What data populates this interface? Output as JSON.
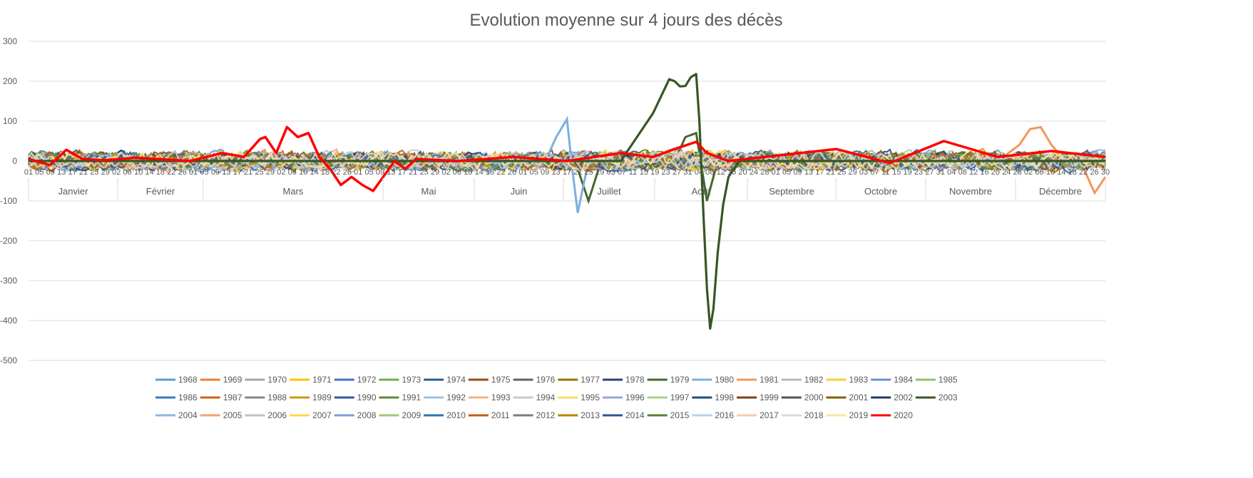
{
  "chart_data": {
    "type": "line",
    "title": "Evolution moyenne sur 4 jours des décès",
    "xlabel": "",
    "ylabel": "",
    "ylim": [
      -500,
      300
    ],
    "yticks": [
      300,
      200,
      100,
      0,
      -100,
      -200,
      -300,
      -400,
      -500
    ],
    "grid": true,
    "legend_position": "bottom",
    "months": [
      "Janvier",
      "Février",
      "Mars",
      "Mai",
      "Juin",
      "Juillet",
      "Août",
      "Septembre",
      "Octobre",
      "Novembre",
      "Décembre"
    ],
    "day_tick_labels": [
      "01",
      "05",
      "09",
      "13",
      "17",
      "21",
      "25",
      "29",
      "02",
      "06",
      "10",
      "14",
      "18",
      "22",
      "26",
      "01",
      "05",
      "09",
      "13",
      "17",
      "21",
      "25",
      "29",
      "02",
      "06",
      "10",
      "14",
      "18",
      "22",
      "26",
      "01",
      "05",
      "09",
      "13",
      "17",
      "21",
      "25",
      "29",
      "02",
      "06",
      "10",
      "14",
      "18",
      "22",
      "26",
      "01",
      "05",
      "09",
      "13",
      "17",
      "21",
      "25",
      "29",
      "03",
      "07",
      "11",
      "15",
      "19",
      "23",
      "27",
      "31",
      "04",
      "08",
      "12",
      "16",
      "20",
      "24",
      "28",
      "01",
      "05",
      "09",
      "13",
      "17",
      "21",
      "25",
      "29",
      "03",
      "07",
      "11",
      "15",
      "19",
      "23",
      "27",
      "31",
      "04",
      "08",
      "12",
      "16",
      "20",
      "24",
      "28",
      "02",
      "06",
      "10",
      "14",
      "18",
      "22",
      "26",
      "30"
    ],
    "series": [
      {
        "name": "1968",
        "color": "#5b9bd5"
      },
      {
        "name": "1969",
        "color": "#ed7d31"
      },
      {
        "name": "1970",
        "color": "#a5a5a5"
      },
      {
        "name": "1971",
        "color": "#ffc000"
      },
      {
        "name": "1972",
        "color": "#4472c4"
      },
      {
        "name": "1973",
        "color": "#70ad47"
      },
      {
        "name": "1974",
        "color": "#255e91"
      },
      {
        "name": "1975",
        "color": "#9e480e"
      },
      {
        "name": "1976",
        "color": "#636363"
      },
      {
        "name": "1977",
        "color": "#997300"
      },
      {
        "name": "1978",
        "color": "#264478"
      },
      {
        "name": "1979",
        "color": "#43682b"
      },
      {
        "name": "1980",
        "color": "#7cafdd"
      },
      {
        "name": "1981",
        "color": "#f1975a"
      },
      {
        "name": "1982",
        "color": "#b7b7b7"
      },
      {
        "name": "1983",
        "color": "#ffcd33"
      },
      {
        "name": "1984",
        "color": "#698ed0"
      },
      {
        "name": "1985",
        "color": "#8cc168"
      },
      {
        "name": "1986",
        "color": "#327dc2"
      },
      {
        "name": "1987",
        "color": "#d26012"
      },
      {
        "name": "1988",
        "color": "#848484"
      },
      {
        "name": "1989",
        "color": "#cc9a00"
      },
      {
        "name": "1990",
        "color": "#335aa1"
      },
      {
        "name": "1991",
        "color": "#5a8a39"
      },
      {
        "name": "1992",
        "color": "#9cc2e5"
      },
      {
        "name": "1993",
        "color": "#f4b183"
      },
      {
        "name": "1994",
        "color": "#c9c9c9"
      },
      {
        "name": "1995",
        "color": "#ffd966"
      },
      {
        "name": "1996",
        "color": "#8faadc"
      },
      {
        "name": "1997",
        "color": "#a9d18e"
      },
      {
        "name": "1998",
        "color": "#1f4e79"
      },
      {
        "name": "1999",
        "color": "#843c0c"
      },
      {
        "name": "2000",
        "color": "#525252"
      },
      {
        "name": "2001",
        "color": "#7f6000"
      },
      {
        "name": "2002",
        "color": "#203864"
      },
      {
        "name": "2003",
        "color": "#375623"
      },
      {
        "name": "2004",
        "color": "#8ab7e0"
      },
      {
        "name": "2005",
        "color": "#f3a26f"
      },
      {
        "name": "2006",
        "color": "#bfbfbf"
      },
      {
        "name": "2007",
        "color": "#ffd54f"
      },
      {
        "name": "2008",
        "color": "#7f9cd6"
      },
      {
        "name": "2009",
        "color": "#9bc97c"
      },
      {
        "name": "2010",
        "color": "#2e75b6"
      },
      {
        "name": "2011",
        "color": "#c55a11"
      },
      {
        "name": "2012",
        "color": "#7b7b7b"
      },
      {
        "name": "2013",
        "color": "#b38600"
      },
      {
        "name": "2014",
        "color": "#2f5597"
      },
      {
        "name": "2015",
        "color": "#548235"
      },
      {
        "name": "2016",
        "color": "#b4d0ec"
      },
      {
        "name": "2017",
        "color": "#f8cbad"
      },
      {
        "name": "2018",
        "color": "#d9d9d9"
      },
      {
        "name": "2019",
        "color": "#ffe699"
      },
      {
        "name": "2020",
        "color": "#ff0000"
      }
    ],
    "highlight_series": {
      "2003": {
        "x": [
          0,
          0.55,
          0.58,
          0.595,
          0.6,
          0.605,
          0.61,
          0.615,
          0.62,
          0.623,
          0.627,
          0.63,
          0.633,
          0.636,
          0.64,
          0.645,
          0.65,
          0.66,
          0.68,
          1
        ],
        "y": [
          0,
          0,
          120,
          205,
          200,
          187,
          188,
          210,
          218,
          100,
          -150,
          -320,
          -420,
          -370,
          -230,
          -110,
          -40,
          0,
          0,
          0
        ]
      },
      "2020": {
        "x": [
          0,
          0.02,
          0.035,
          0.05,
          0.07,
          0.1,
          0.15,
          0.18,
          0.2,
          0.215,
          0.22,
          0.23,
          0.24,
          0.25,
          0.26,
          0.27,
          0.28,
          0.29,
          0.3,
          0.31,
          0.32,
          0.34,
          0.35,
          0.36,
          0.4,
          0.45,
          0.5,
          0.55,
          0.58,
          0.6,
          0.62,
          0.63,
          0.65,
          0.7,
          0.75,
          0.8,
          0.85,
          0.9,
          0.95,
          1
        ],
        "y": [
          5,
          -10,
          28,
          5,
          2,
          8,
          0,
          20,
          10,
          55,
          60,
          20,
          85,
          60,
          70,
          10,
          -20,
          -60,
          -40,
          -60,
          -75,
          0,
          -20,
          5,
          0,
          10,
          0,
          20,
          10,
          30,
          48,
          20,
          0,
          15,
          30,
          -5,
          50,
          10,
          25,
          10
        ]
      },
      "1979": {
        "x": [
          0.48,
          0.5,
          0.51,
          0.52,
          0.53,
          0.6,
          0.61,
          0.62,
          0.63,
          0.64
        ],
        "y": [
          0,
          20,
          -20,
          -100,
          -15,
          0,
          60,
          70,
          -100,
          0
        ]
      },
      "1980": {
        "x": [
          0.48,
          0.49,
          0.5,
          0.505,
          0.51,
          0.52
        ],
        "y": [
          0,
          60,
          105,
          -20,
          -130,
          0
        ]
      },
      "1981": {
        "x": [
          0.9,
          0.92,
          0.93,
          0.94,
          0.95,
          0.96,
          0.98,
          0.99,
          1
        ],
        "y": [
          0,
          40,
          80,
          85,
          40,
          10,
          -20,
          -80,
          -40
        ]
      }
    }
  }
}
